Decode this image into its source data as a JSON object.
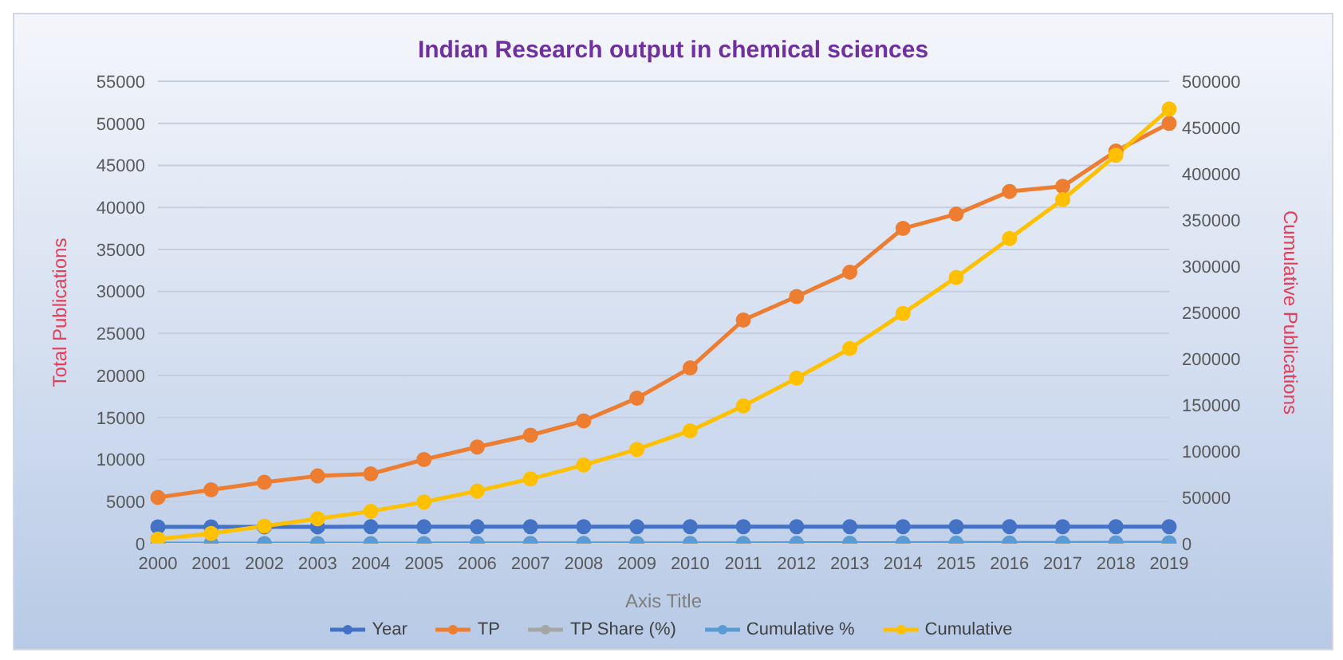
{
  "chart_data": {
    "type": "line",
    "title": "Indian Research output in chemical sciences",
    "xlabel": "Axis Title",
    "ylabel": "Total Publications",
    "y2label": "Cumulative Publications",
    "categories": [
      "2000",
      "2001",
      "2002",
      "2003",
      "2004",
      "2005",
      "2006",
      "2007",
      "2008",
      "2009",
      "2010",
      "2011",
      "2012",
      "2013",
      "2014",
      "2015",
      "2016",
      "2017",
      "2018",
      "2019"
    ],
    "series": [
      {
        "name": "Year",
        "color": "#4472c4",
        "values": [
          2000,
          2001,
          2002,
          2003,
          2004,
          2005,
          2006,
          2007,
          2008,
          2009,
          2010,
          2011,
          2012,
          2013,
          2014,
          2015,
          2016,
          2017,
          2018,
          2019
        ]
      },
      {
        "name": "TP",
        "color": "#ed7d31",
        "values": [
          5500,
          6400,
          7300,
          8050,
          8300,
          10000,
          11500,
          12900,
          14600,
          17300,
          20900,
          26600,
          29400,
          32300,
          37500,
          39200,
          41900,
          42500,
          46700,
          50000
        ]
      },
      {
        "name": "TP Share (%)",
        "color": "#a5a5a5",
        "values": [
          null,
          null,
          null,
          null,
          null,
          null,
          null,
          null,
          null,
          null,
          null,
          null,
          null,
          null,
          null,
          null,
          null,
          null,
          null,
          null
        ]
      },
      {
        "name": "Cumulative %",
        "color": "#5b9bd5",
        "values": [
          1,
          2,
          4,
          6,
          7,
          10,
          12,
          15,
          18,
          22,
          26,
          32,
          38,
          45,
          53,
          61,
          70,
          79,
          89,
          100
        ]
      },
      {
        "name": "Cumulative",
        "color": "#ffc000",
        "axis": "y2",
        "values": [
          5000,
          11000,
          19000,
          27000,
          35000,
          45000,
          57000,
          70000,
          85000,
          102000,
          122000,
          149000,
          179000,
          211000,
          249000,
          288000,
          330000,
          372000,
          420000,
          470000
        ]
      }
    ],
    "ylim": [
      0,
      55000
    ],
    "yticks": [
      0,
      5000,
      10000,
      15000,
      20000,
      25000,
      30000,
      35000,
      40000,
      45000,
      50000,
      55000
    ],
    "y2lim": [
      0,
      500000
    ],
    "y2ticks": [
      0,
      50000,
      100000,
      150000,
      200000,
      250000,
      300000,
      350000,
      400000,
      450000,
      500000
    ],
    "grid": "y",
    "legend": "bottom",
    "marker": "circle",
    "line_style": "solid"
  }
}
